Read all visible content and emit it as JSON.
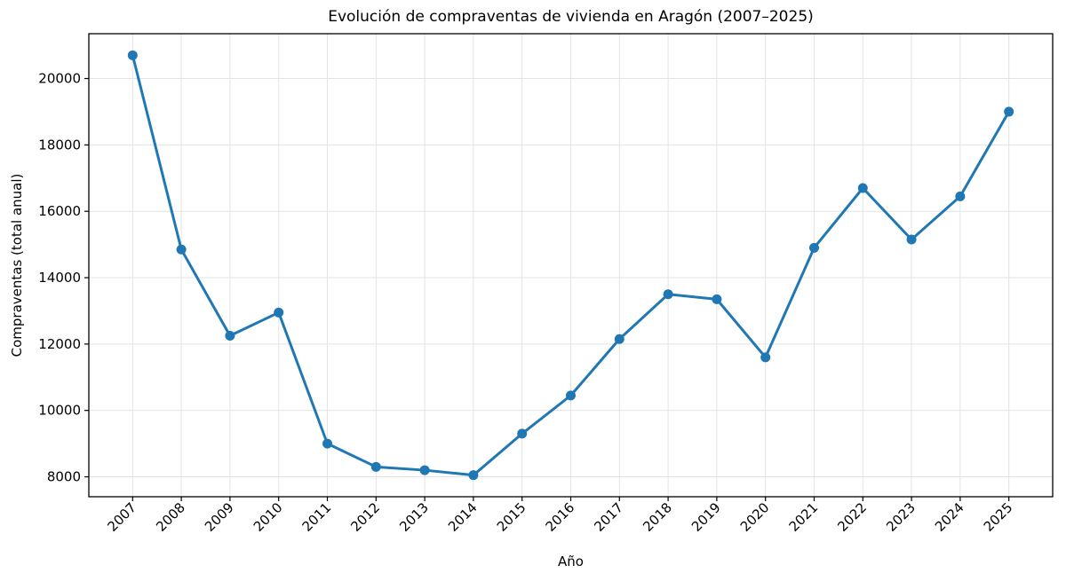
{
  "chart_data": {
    "type": "line",
    "title": "Evolución de compraventas de vivienda en Aragón (2007–2025)",
    "xlabel": "Año",
    "ylabel": "Compraventas (total anual)",
    "categories": [
      2007,
      2008,
      2009,
      2010,
      2011,
      2012,
      2013,
      2014,
      2015,
      2016,
      2017,
      2018,
      2019,
      2020,
      2021,
      2022,
      2023,
      2024,
      2025
    ],
    "values": [
      20700,
      14850,
      12250,
      12950,
      9000,
      8300,
      8200,
      8050,
      9300,
      10450,
      12150,
      13500,
      13350,
      11600,
      14900,
      16700,
      15150,
      16450,
      19000
    ],
    "yticks": [
      8000,
      10000,
      12000,
      14000,
      16000,
      18000,
      20000
    ],
    "xlim": [
      2006.1,
      2025.9
    ],
    "ylim": [
      7400,
      21350
    ],
    "grid": true,
    "legend": "none",
    "line_color": "#1f77b4",
    "marker": "circle",
    "axes_color": "#000000",
    "grid_color": "#e3e3e3"
  }
}
